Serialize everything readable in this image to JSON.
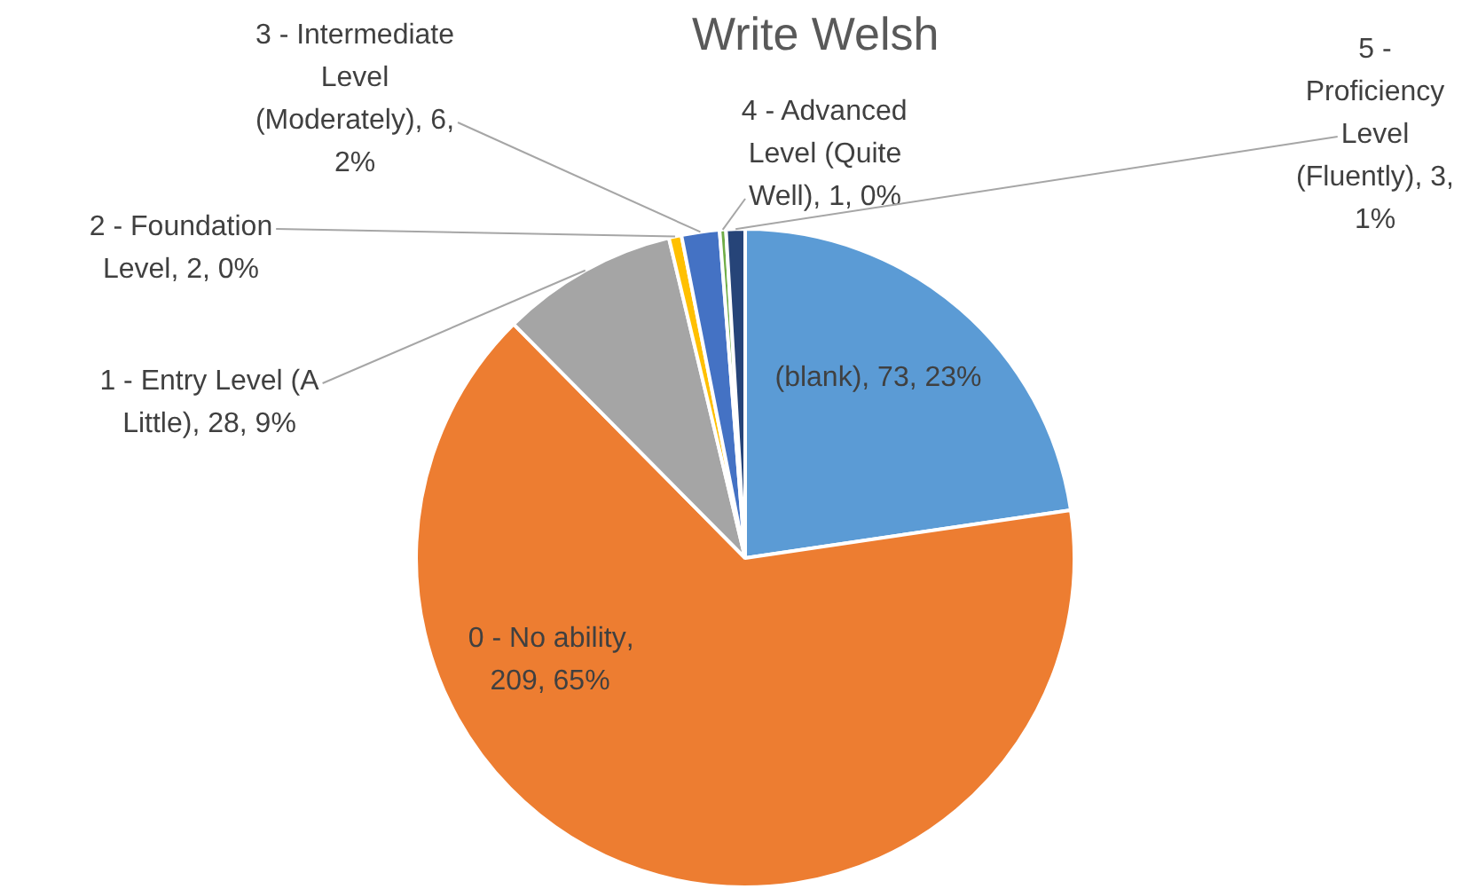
{
  "chart_data": {
    "type": "pie",
    "title": "Write Welsh",
    "categories": [
      "(blank)",
      "0 - No ability",
      "1 - Entry Level (A Little)",
      "2 - Foundation Level",
      "3 - Intermediate Level (Moderately)",
      "4 - Advanced Level (Quite Well)",
      "5 - Proficiency Level (Fluently)"
    ],
    "values": [
      73,
      209,
      28,
      2,
      6,
      1,
      3
    ],
    "value_labels": [
      ", 73, 23%",
      ", 209, 65%",
      ", 28, 9%",
      ", 2, 0%",
      ", 6, 2%",
      ", 1, 0%",
      ", 3, 1%"
    ],
    "colors": [
      "#5b9bd5",
      "#ed7d31",
      "#a5a5a5",
      "#ffc000",
      "#4472c4",
      "#70ad47",
      "#264478"
    ],
    "legend": false
  }
}
